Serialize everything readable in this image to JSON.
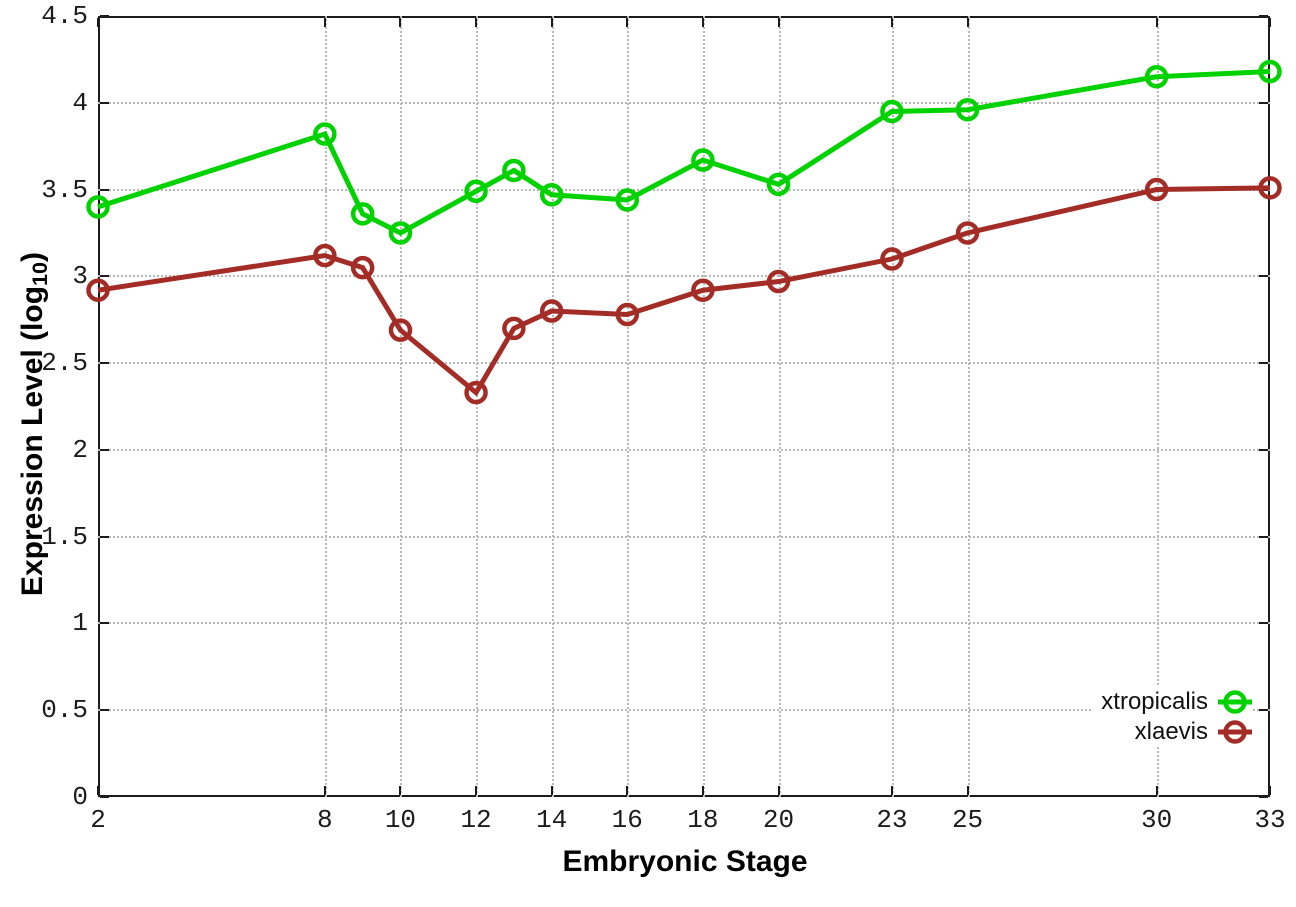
{
  "chart_data": {
    "type": "line",
    "title": "",
    "xlabel": "Embryonic Stage",
    "ylabel": "Expression Level (log10)",
    "ylabel_parts": {
      "pre": "Expression Level (log",
      "sub": "10",
      "post": ")"
    },
    "xlim": [
      2,
      33
    ],
    "ylim": [
      0,
      4.5
    ],
    "grid": true,
    "legend_position": "bottom-right",
    "x_ticks": [
      2,
      8,
      10,
      12,
      14,
      16,
      18,
      20,
      23,
      25,
      30,
      33
    ],
    "x_tick_labels": [
      "2",
      "8",
      "10",
      "12",
      "14",
      "16",
      "18",
      "20",
      "23",
      "25",
      "30",
      "33"
    ],
    "y_ticks": [
      0,
      0.5,
      1,
      1.5,
      2,
      2.5,
      3,
      3.5,
      4,
      4.5
    ],
    "y_tick_labels": [
      "0",
      "0.5",
      "1",
      "1.5",
      "2",
      "2.5",
      "3",
      "3.5",
      "4",
      "4.5"
    ],
    "x": [
      2,
      8,
      9,
      10,
      12,
      13,
      14,
      16,
      18,
      20,
      23,
      25,
      30,
      33
    ],
    "series": [
      {
        "name": "xtropicalis",
        "color": "#00d200",
        "values": [
          3.4,
          3.82,
          3.36,
          3.25,
          3.49,
          3.61,
          3.47,
          3.44,
          3.67,
          3.53,
          3.95,
          3.96,
          4.15,
          4.18
        ]
      },
      {
        "name": "xlaevis",
        "color": "#a32c26",
        "values": [
          2.92,
          3.12,
          3.05,
          2.69,
          2.33,
          2.7,
          2.8,
          2.78,
          2.92,
          2.97,
          3.1,
          3.25,
          3.5,
          3.51
        ]
      }
    ],
    "colors": {
      "border": "#1c1c1c",
      "gridline": "#b8b8b8",
      "background": "#ffffff"
    }
  }
}
